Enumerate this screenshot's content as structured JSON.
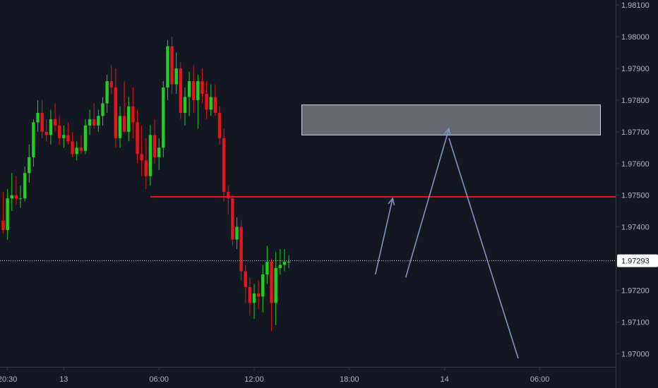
{
  "chart_data": {
    "type": "candlestick",
    "colors": {
      "background": "#131722",
      "up": "#1fd11f",
      "down": "#e8131b",
      "axis_text": "#b2b5be",
      "axis_line": "#363a45",
      "level_line": "#e8131b",
      "zone_fill": "#c8cbd2",
      "arrow": "#8193c7",
      "last_price_line": "#cfd2da",
      "last_price_tag": "#ffffff"
    },
    "y_axis": {
      "range": [
        1.96985,
        1.98105
      ],
      "ticks": [
        "1.98100",
        "1.98000",
        "1.97900",
        "1.97800",
        "1.97700",
        "1.97600",
        "1.97500",
        "1.97400",
        "1.97200",
        "1.97100",
        "1.97000"
      ],
      "tick_values": [
        1.981,
        1.98,
        1.979,
        1.978,
        1.977,
        1.976,
        1.975,
        1.974,
        1.972,
        1.971,
        1.97
      ]
    },
    "x_axis": {
      "ticks": [
        {
          "label": "20:30",
          "slot": 1
        },
        {
          "label": "13",
          "slot": 14
        },
        {
          "label": "06:00",
          "slot": 36
        },
        {
          "label": "12:00",
          "slot": 58
        },
        {
          "label": "18:00",
          "slot": 80
        },
        {
          "label": "14",
          "slot": 102
        },
        {
          "label": "06:00",
          "slot": 124
        }
      ]
    },
    "last_price": {
      "value": 1.97293,
      "label": "1.97293"
    },
    "candles": [
      [
        1.9742,
        1.9751,
        1.9738,
        1.9739
      ],
      [
        1.9739,
        1.9752,
        1.9736,
        1.9749
      ],
      [
        1.9749,
        1.9757,
        1.9745,
        1.975
      ],
      [
        1.975,
        1.9756,
        1.9747,
        1.9749
      ],
      [
        1.9749,
        1.9753,
        1.9746,
        1.9749
      ],
      [
        1.9749,
        1.9759,
        1.9748,
        1.9757
      ],
      [
        1.9757,
        1.9766,
        1.9754,
        1.9762
      ],
      [
        1.9762,
        1.9774,
        1.9759,
        1.9773
      ],
      [
        1.9773,
        1.978,
        1.977,
        1.9776
      ],
      [
        1.9776,
        1.978,
        1.9768,
        1.977
      ],
      [
        1.977,
        1.9774,
        1.9767,
        1.9769
      ],
      [
        1.9769,
        1.9777,
        1.9766,
        1.9774
      ],
      [
        1.9774,
        1.9779,
        1.977,
        1.9772
      ],
      [
        1.9772,
        1.9775,
        1.9766,
        1.9768
      ],
      [
        1.9768,
        1.9772,
        1.9765,
        1.9769
      ],
      [
        1.9769,
        1.9773,
        1.9766,
        1.9767
      ],
      [
        1.9767,
        1.977,
        1.9762,
        1.9763
      ],
      [
        1.9763,
        1.9767,
        1.9761,
        1.9765
      ],
      [
        1.9765,
        1.9769,
        1.9763,
        1.9764
      ],
      [
        1.9764,
        1.9774,
        1.9763,
        1.9772
      ],
      [
        1.9772,
        1.9777,
        1.9769,
        1.9774
      ],
      [
        1.9774,
        1.9779,
        1.9771,
        1.9772
      ],
      [
        1.9772,
        1.9777,
        1.977,
        1.9775
      ],
      [
        1.9775,
        1.9781,
        1.9772,
        1.9779
      ],
      [
        1.9779,
        1.9788,
        1.9776,
        1.9786
      ],
      [
        1.9786,
        1.9791,
        1.9782,
        1.9784
      ],
      [
        1.9784,
        1.979,
        1.9765,
        1.9768
      ],
      [
        1.9768,
        1.9778,
        1.9765,
        1.9775
      ],
      [
        1.9775,
        1.9786,
        1.977,
        1.977
      ],
      [
        1.977,
        1.9781,
        1.9767,
        1.9778
      ],
      [
        1.9778,
        1.9784,
        1.9768,
        1.9773
      ],
      [
        1.9773,
        1.9777,
        1.976,
        1.9763
      ],
      [
        1.9763,
        1.9772,
        1.9756,
        1.9761
      ],
      [
        1.9761,
        1.9768,
        1.9752,
        1.9756
      ],
      [
        1.9756,
        1.9772,
        1.9753,
        1.9769
      ],
      [
        1.9769,
        1.9774,
        1.976,
        1.9762
      ],
      [
        1.9762,
        1.9768,
        1.9758,
        1.9765
      ],
      [
        1.9765,
        1.9786,
        1.9762,
        1.9784
      ],
      [
        1.9784,
        1.9799,
        1.978,
        1.9797
      ],
      [
        1.9797,
        1.98,
        1.9782,
        1.9785
      ],
      [
        1.9785,
        1.9795,
        1.9782,
        1.979
      ],
      [
        1.979,
        1.9792,
        1.9774,
        1.9776
      ],
      [
        1.9776,
        1.9784,
        1.9772,
        1.9781
      ],
      [
        1.9781,
        1.9789,
        1.9775,
        1.9786
      ],
      [
        1.9786,
        1.9791,
        1.9776,
        1.978
      ],
      [
        1.978,
        1.9788,
        1.9771,
        1.9786
      ],
      [
        1.9786,
        1.979,
        1.9779,
        1.9782
      ],
      [
        1.9782,
        1.9786,
        1.9774,
        1.9777
      ],
      [
        1.9777,
        1.9785,
        1.9775,
        1.9781
      ],
      [
        1.9781,
        1.9785,
        1.9775,
        1.9776
      ],
      [
        1.9776,
        1.9778,
        1.9766,
        1.9768
      ],
      [
        1.9768,
        1.9771,
        1.9748,
        1.9751
      ],
      [
        1.9751,
        1.9753,
        1.9744,
        1.9749
      ],
      [
        1.9749,
        1.975,
        1.9734,
        1.9736
      ],
      [
        1.9736,
        1.9743,
        1.9733,
        1.974
      ],
      [
        1.974,
        1.9742,
        1.9723,
        1.9726
      ],
      [
        1.9726,
        1.9728,
        1.9716,
        1.9721
      ],
      [
        1.9721,
        1.9724,
        1.9712,
        1.9716
      ],
      [
        1.9716,
        1.9722,
        1.9711,
        1.9719
      ],
      [
        1.9719,
        1.9723,
        1.9714,
        1.9718
      ],
      [
        1.9718,
        1.9728,
        1.9713,
        1.9725
      ],
      [
        1.9725,
        1.9734,
        1.9722,
        1.9729
      ],
      [
        1.9729,
        1.973,
        1.9707,
        1.9716
      ],
      [
        1.9716,
        1.9732,
        1.9709,
        1.9727
      ],
      [
        1.9727,
        1.9733,
        1.9725,
        1.9728
      ],
      [
        1.9728,
        1.9733,
        1.9726,
        1.9729
      ],
      [
        1.9729,
        1.9731,
        1.9727,
        1.9729
      ]
    ],
    "annotations": {
      "resistance_zone": {
        "slot_start": 69,
        "slot_end": 138,
        "price_top": 1.97785,
        "price_bottom": 1.9769
      },
      "level_line": {
        "price": 1.97495,
        "slot_start": 34
      },
      "arrows": [
        {
          "from": [
            86,
            1.9725
          ],
          "to": [
            90,
            1.9749
          ]
        },
        {
          "from": [
            93,
            1.9724
          ],
          "to": [
            103,
            1.9771
          ]
        },
        {
          "from": [
            103,
            1.9768
          ],
          "to": [
            119,
            1.96985
          ]
        }
      ]
    }
  }
}
